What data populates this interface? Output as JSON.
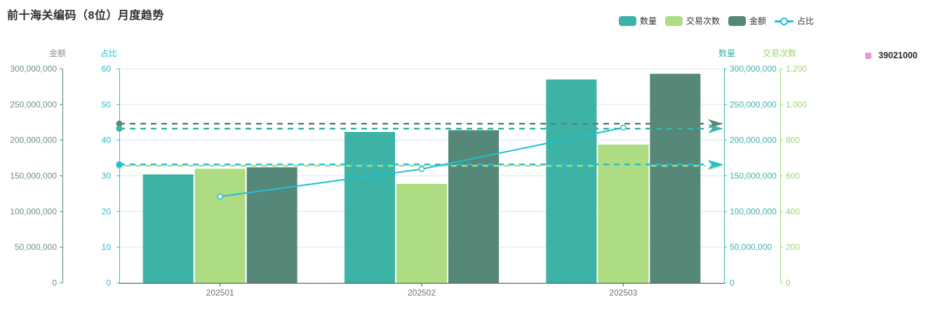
{
  "title": "前十海关编码（8位）月度趋势",
  "legend": {
    "items": [
      {
        "key": "qty",
        "label": "数量",
        "type": "bar",
        "color": "#3CB3A5"
      },
      {
        "key": "txn",
        "label": "交易次数",
        "type": "bar",
        "color": "#AEDC82"
      },
      {
        "key": "amount",
        "label": "金额",
        "type": "bar",
        "color": "#568879"
      },
      {
        "key": "ratio",
        "label": "占比",
        "type": "line",
        "color": "#1FC0D3"
      }
    ]
  },
  "right_legend": {
    "label": "39021000",
    "color": "#E59AD9"
  },
  "colors": {
    "grid": "#E0E6F1",
    "x_axis_line": "#474C55",
    "x_label": "#6E7079",
    "marker_fill": "#ffffff"
  },
  "chart_data": {
    "type": "bar+line",
    "categories": [
      "202501",
      "202502",
      "202503"
    ],
    "series": [
      {
        "key": "qty",
        "name": "数量",
        "type": "bar",
        "axis": "qty",
        "color": "#3CB3A5",
        "values": [
          152000000,
          211500000,
          285000000
        ],
        "average_markline": true
      },
      {
        "key": "txn",
        "name": "交易次数",
        "type": "bar",
        "axis": "txn",
        "color": "#AEDC82",
        "values": [
          640,
          555,
          775
        ],
        "average_markline": true
      },
      {
        "key": "amount",
        "name": "金额",
        "type": "bar",
        "axis": "amount",
        "color": "#568879",
        "values": [
          162000000,
          214000000,
          293000000
        ],
        "average_markline": true
      },
      {
        "key": "ratio",
        "name": "占比",
        "type": "line",
        "axis": "ratio",
        "color": "#1FC0D3",
        "values": [
          24.2,
          31.9,
          43.5
        ],
        "average_markline": true
      }
    ],
    "axes": {
      "amount": {
        "name": "金额",
        "position": "left",
        "min": 0,
        "max": 300000000,
        "ticks": [
          "0",
          "50,000,000",
          "100,000,000",
          "150,000,000",
          "200,000,000",
          "250,000,000",
          "300,000,000"
        ],
        "lineColor": "#568879",
        "labelColor": "#6E9086",
        "nameColor": "#8A9490"
      },
      "ratio": {
        "name": "占比",
        "position": "left",
        "min": 0,
        "max": 60,
        "ticks": [
          "0",
          "10",
          "20",
          "30",
          "40",
          "50",
          "60"
        ],
        "lineColor": "#1FC0D3",
        "labelColor": "#1FC0D3",
        "nameColor": "#1FC0D3"
      },
      "qty": {
        "name": "数量",
        "position": "right",
        "min": 0,
        "max": 300000000,
        "ticks": [
          "0",
          "50,000,000",
          "100,000,000",
          "150,000,000",
          "200,000,000",
          "250,000,000",
          "300,000,000"
        ],
        "lineColor": "#3CB3A5",
        "labelColor": "#3CB3A5",
        "nameColor": "#3CB3A5"
      },
      "txn": {
        "name": "交易次数",
        "position": "right",
        "min": 0,
        "max": 1200,
        "ticks": [
          "0",
          "200",
          "400",
          "600",
          "800",
          "1,000",
          "1,200"
        ],
        "lineColor": "#9ED472",
        "labelColor": "#9ED472",
        "nameColor": "#9ED472"
      }
    },
    "grid_on": true,
    "legend_position": "top-right"
  }
}
